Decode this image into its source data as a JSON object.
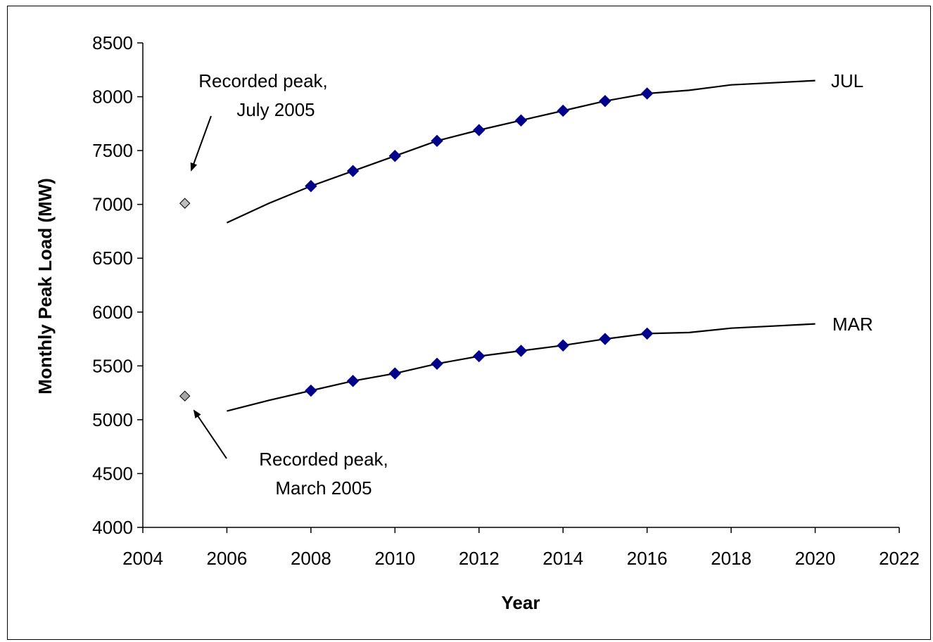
{
  "chart_data": {
    "type": "line",
    "title": "",
    "xlabel": "Year",
    "ylabel": "Monthly Peak Load (MW)",
    "xlim": [
      2004,
      2022
    ],
    "ylim": [
      4000,
      8500
    ],
    "x_ticks": [
      2004,
      2006,
      2008,
      2010,
      2012,
      2014,
      2016,
      2018,
      2020,
      2022
    ],
    "y_ticks": [
      4000,
      4500,
      5000,
      5500,
      6000,
      6500,
      7000,
      7500,
      8000,
      8500
    ],
    "grid": false,
    "legend": "none",
    "series": [
      {
        "name": "JUL",
        "line_color": "#000000",
        "marker_color": "#00008B",
        "x": [
          2006,
          2007,
          2008,
          2009,
          2010,
          2011,
          2012,
          2013,
          2014,
          2015,
          2016,
          2017,
          2018,
          2019,
          2020
        ],
        "y": [
          6830,
          7010,
          7170,
          7310,
          7450,
          7590,
          7690,
          7780,
          7870,
          7960,
          8030,
          8060,
          8110,
          8130,
          8150
        ],
        "marker_x": [
          2008,
          2009,
          2010,
          2011,
          2012,
          2013,
          2014,
          2015,
          2016
        ]
      },
      {
        "name": "MAR",
        "line_color": "#000000",
        "marker_color": "#00008B",
        "x": [
          2006,
          2007,
          2008,
          2009,
          2010,
          2011,
          2012,
          2013,
          2014,
          2015,
          2016,
          2017,
          2018,
          2019,
          2020
        ],
        "y": [
          5080,
          5180,
          5270,
          5360,
          5430,
          5520,
          5590,
          5640,
          5690,
          5750,
          5800,
          5810,
          5850,
          5870,
          5890
        ],
        "marker_x": [
          2008,
          2009,
          2010,
          2011,
          2012,
          2013,
          2014,
          2015,
          2016
        ]
      }
    ],
    "recorded_points": [
      {
        "x": 2005,
        "y": 7010,
        "color": "#BFBFBF"
      },
      {
        "x": 2005,
        "y": 5220,
        "color": "#A6A6A6"
      }
    ],
    "annotations": [
      {
        "lines": [
          "Recorded peak,",
          "July 2005"
        ],
        "points_to": {
          "x": 2005,
          "y": 7010
        }
      },
      {
        "lines": [
          "Recorded peak,",
          "March 2005"
        ],
        "points_to": {
          "x": 2005,
          "y": 5220
        }
      }
    ]
  }
}
